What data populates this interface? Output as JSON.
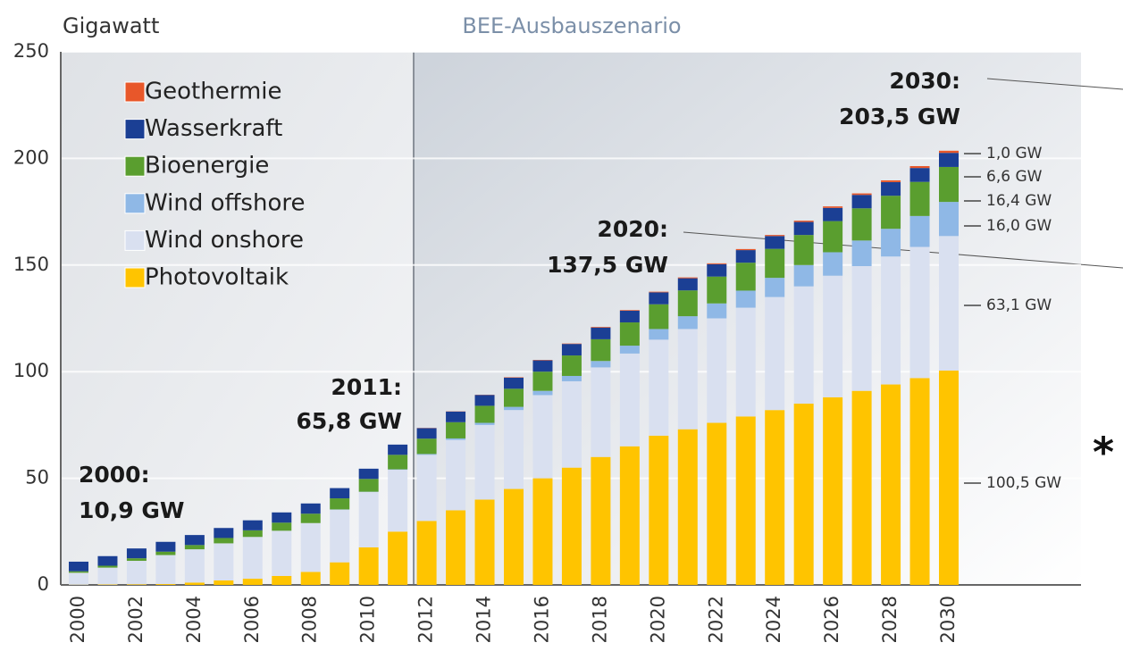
{
  "chart_data": {
    "type": "stacked_bar",
    "y_axis_label": "Gigawatt",
    "subtitle": "BEE-Ausbauszenario",
    "categories": [
      "2000",
      null,
      "2002",
      null,
      "2004",
      null,
      "2006",
      null,
      "2008",
      null,
      "2010",
      null,
      "2012",
      null,
      "2014",
      null,
      "2016",
      null,
      "2018",
      null,
      "2020",
      null,
      "2022",
      null,
      "2024",
      null,
      "2026",
      null,
      "2028",
      null,
      "2030"
    ],
    "series": [
      {
        "name": "Photovoltaik",
        "color": "#ffc400",
        "values": [
          0.1,
          0.2,
          0.3,
          0.4,
          1.1,
          2.1,
          2.9,
          4.2,
          6.1,
          10.6,
          17.6,
          25.0,
          30,
          35,
          40,
          45,
          50,
          55,
          60,
          65,
          70,
          73,
          76,
          79,
          82,
          85,
          88,
          91,
          94,
          97,
          100.5
        ]
      },
      {
        "name": "Wind onshore",
        "color": "#d9e0f0",
        "values": [
          5.6,
          7.9,
          11.0,
          13.6,
          15.6,
          17.4,
          19.6,
          21.2,
          22.9,
          24.7,
          26.0,
          29.0,
          31,
          33,
          35,
          37,
          39,
          40.5,
          42,
          43.5,
          45,
          47,
          49,
          51,
          53,
          55,
          57,
          58.5,
          60,
          61.5,
          63.1
        ]
      },
      {
        "name": "Wind offshore",
        "color": "#8fb8e6",
        "values": [
          0,
          0,
          0,
          0,
          0,
          0,
          0,
          0,
          0,
          0.1,
          0.1,
          0.2,
          0.4,
          0.7,
          1.0,
          1.5,
          2,
          2.5,
          3,
          3.7,
          5,
          6,
          7,
          8,
          9,
          10,
          11,
          12,
          13,
          14.5,
          16.0
        ]
      },
      {
        "name": "Bioenergie",
        "color": "#5a9e2f",
        "values": [
          0.7,
          0.9,
          1.2,
          1.6,
          2.0,
          2.5,
          3.1,
          3.8,
          4.4,
          5.2,
          6.0,
          6.8,
          7.2,
          7.6,
          8.0,
          8.5,
          9.0,
          9.6,
          10.2,
          10.9,
          11.6,
          12.1,
          12.6,
          13.1,
          13.6,
          14.1,
          14.6,
          15.1,
          15.5,
          16.0,
          16.4
        ]
      },
      {
        "name": "Wasserkraft",
        "color": "#1b3f94",
        "values": [
          4.5,
          4.5,
          4.6,
          4.6,
          4.7,
          4.7,
          4.7,
          4.8,
          4.8,
          4.8,
          4.8,
          4.8,
          4.9,
          5.0,
          5.1,
          5.2,
          5.3,
          5.4,
          5.5,
          5.5,
          5.6,
          5.7,
          5.8,
          5.9,
          6.0,
          6.1,
          6.2,
          6.3,
          6.4,
          6.5,
          6.6
        ]
      },
      {
        "name": "Geothermie",
        "color": "#e8572a",
        "values": [
          0,
          0,
          0,
          0,
          0,
          0,
          0,
          0,
          0,
          0,
          0,
          0,
          0.1,
          0.1,
          0.1,
          0.2,
          0.2,
          0.2,
          0.3,
          0.3,
          0.3,
          0.4,
          0.4,
          0.5,
          0.5,
          0.6,
          0.7,
          0.7,
          0.8,
          0.9,
          1.0
        ]
      }
    ],
    "ylim": [
      0,
      250
    ],
    "yticks": [
      0,
      50,
      100,
      150,
      200,
      250
    ],
    "grid": true,
    "legend": "upper left",
    "annotations": [
      "2000:",
      "10,9 GW",
      "2011:",
      "65,8 GW",
      "2020:",
      "137,5 GW",
      "2030:",
      "203,5 GW"
    ],
    "segment_labels": [
      "1,0 GW",
      "6,6 GW",
      "16,4 GW",
      "16,0 GW",
      "63,1 GW",
      "100,5 GW"
    ],
    "footnote": "*"
  }
}
